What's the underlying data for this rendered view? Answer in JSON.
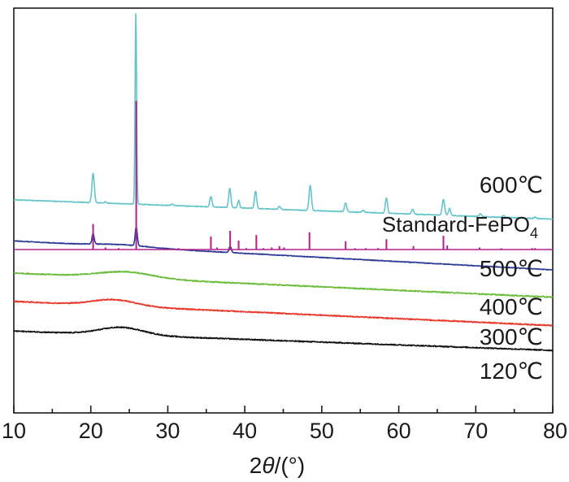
{
  "chart_data": {
    "type": "line",
    "title": "",
    "xlabel": {
      "prefix": "2",
      "symbol": "θ",
      "suffix": "/(°)"
    },
    "ylabel": "",
    "xlim": [
      10,
      80
    ],
    "x_major_ticks": [
      10,
      20,
      30,
      40,
      50,
      60,
      70,
      80
    ],
    "x_tick_labels": [
      "10",
      "20",
      "30",
      "40",
      "50",
      "60",
      "70",
      "80"
    ],
    "y_ticks_shown": false,
    "series": [
      {
        "name": "600℃",
        "color": "#63c5c9",
        "baseline": 0.72,
        "slope": -0.004,
        "noise": 0.005,
        "amorphous": [],
        "peaks": [
          [
            20.3,
            0.42,
            0.22
          ],
          [
            21.9,
            0.02,
            0.15
          ],
          [
            25.85,
            2.75,
            0.14
          ],
          [
            30.6,
            0.02,
            0.2
          ],
          [
            35.6,
            0.15,
            0.2
          ],
          [
            38.05,
            0.28,
            0.2
          ],
          [
            39.2,
            0.11,
            0.17
          ],
          [
            41.4,
            0.25,
            0.2
          ],
          [
            44.5,
            0.04,
            0.2
          ],
          [
            48.5,
            0.36,
            0.22
          ],
          [
            53.1,
            0.13,
            0.2
          ],
          [
            55.4,
            0.03,
            0.2
          ],
          [
            58.4,
            0.22,
            0.2
          ],
          [
            61.8,
            0.07,
            0.2
          ],
          [
            65.8,
            0.23,
            0.22
          ],
          [
            66.6,
            0.1,
            0.2
          ],
          [
            70.6,
            0.04,
            0.2
          ],
          [
            73.6,
            0.03,
            0.2
          ],
          [
            77.7,
            0.02,
            0.2
          ]
        ]
      },
      {
        "name": "500℃",
        "color": "#2a3a94",
        "baseline": 0.125,
        "slope": -0.006,
        "noise": 0.005,
        "amorphous": [
          [
            24.0,
            0.03,
            5.0
          ]
        ],
        "peaks": [
          [
            20.3,
            0.15,
            0.2
          ],
          [
            25.9,
            0.27,
            0.2
          ],
          [
            38.1,
            0.09,
            0.2
          ]
        ]
      },
      {
        "name": "400℃",
        "color": "#6cbc3c",
        "baseline": -0.34,
        "slope": -0.005,
        "noise": 0.008,
        "amorphous": [
          [
            24.5,
            0.09,
            5.0
          ]
        ],
        "peaks": []
      },
      {
        "name": "300℃",
        "color": "#e8392c",
        "baseline": -0.75,
        "slope": -0.005,
        "noise": 0.008,
        "amorphous": [
          [
            23.0,
            0.09,
            4.0
          ]
        ],
        "peaks": []
      },
      {
        "name": "120℃",
        "color": "#111111",
        "baseline": -1.18,
        "slope": -0.004,
        "noise": 0.008,
        "amorphous": [
          [
            24.0,
            0.11,
            4.0
          ]
        ],
        "peaks": []
      }
    ],
    "standard": {
      "name": "Standard-FePO",
      "subscript": "4",
      "color": "#b0208e",
      "baseline": 0.0,
      "sticks": [
        [
          20.3,
          0.37
        ],
        [
          21.9,
          0.03
        ],
        [
          23.6,
          0.02
        ],
        [
          25.9,
          2.15
        ],
        [
          31.4,
          0.02
        ],
        [
          35.6,
          0.19
        ],
        [
          36.4,
          0.03
        ],
        [
          38.1,
          0.27
        ],
        [
          39.2,
          0.13
        ],
        [
          40.2,
          0.02
        ],
        [
          41.5,
          0.21
        ],
        [
          42.4,
          0.02
        ],
        [
          43.5,
          0.03
        ],
        [
          44.5,
          0.05
        ],
        [
          45.1,
          0.03
        ],
        [
          48.4,
          0.25
        ],
        [
          53.1,
          0.12
        ],
        [
          54.3,
          0.02
        ],
        [
          55.7,
          0.02
        ],
        [
          57.3,
          0.02
        ],
        [
          58.4,
          0.15
        ],
        [
          61.9,
          0.05
        ],
        [
          65.8,
          0.2
        ],
        [
          66.3,
          0.06
        ],
        [
          70.5,
          0.03
        ],
        [
          73.3,
          0.02
        ],
        [
          77.3,
          0.02
        ],
        [
          77.7,
          0.02
        ]
      ]
    },
    "labels": [
      {
        "text": "600℃",
        "near": "600℃ curve",
        "anchor": "right"
      },
      {
        "text": "Standard-FePO4",
        "near": "standard sticks",
        "anchor": "right"
      },
      {
        "text": "500℃",
        "near": "500℃ curve",
        "anchor": "right"
      },
      {
        "text": "400℃",
        "near": "400℃ curve",
        "anchor": "right"
      },
      {
        "text": "300℃",
        "near": "300℃ curve",
        "anchor": "right"
      },
      {
        "text": "120℃",
        "near": "120℃ curve",
        "anchor": "right"
      }
    ]
  }
}
